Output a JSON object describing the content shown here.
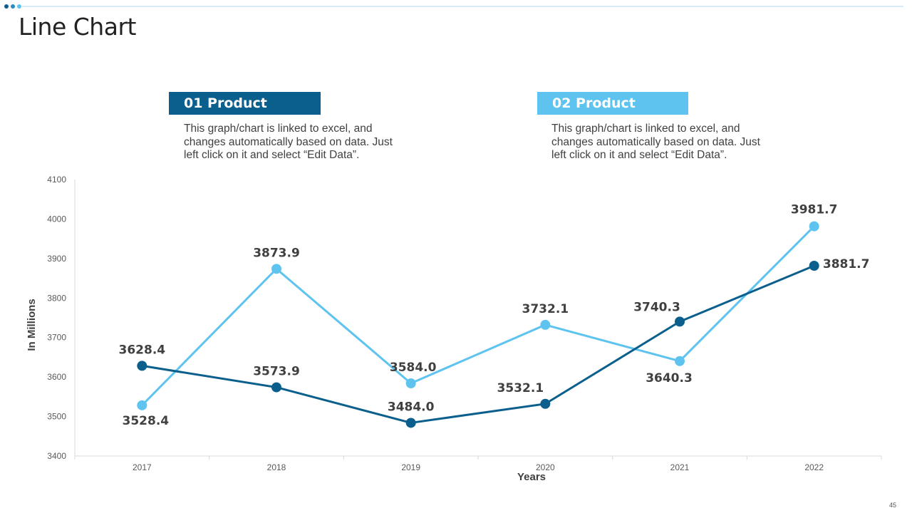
{
  "slide": {
    "title": "Line Chart",
    "page_number": "45",
    "colors": {
      "dark": "#0b5f8c",
      "light": "#5ec4ef",
      "dot_mid": "#2b8cc4"
    }
  },
  "legend": [
    {
      "label": "01 Product",
      "description": "This graph/chart is linked to excel, and changes automatically based on data. Just left click on it and select “Edit Data”.",
      "color": "#0b5f8c"
    },
    {
      "label": "02 Product",
      "description": "This graph/chart is linked to excel, and changes automatically based on data. Just left click on it and select “Edit Data”.",
      "color": "#5ec4ef"
    }
  ],
  "chart_data": {
    "type": "line",
    "title": "",
    "xlabel": "Years",
    "ylabel": "In Millions",
    "categories": [
      "2017",
      "2018",
      "2019",
      "2020",
      "2021",
      "2022"
    ],
    "ylim": [
      3400,
      4100
    ],
    "yticks": [
      3400,
      3500,
      3600,
      3700,
      3800,
      3900,
      4000,
      4100
    ],
    "grid": false,
    "series": [
      {
        "name": "01 Product",
        "color": "#0b5f8c",
        "values": [
          3628.4,
          3573.9,
          3484.0,
          3532.1,
          3740.3,
          3881.7
        ],
        "labels": [
          "3628.4",
          "3573.9",
          "3484.0",
          "3532.1",
          "3740.3",
          "3881.7"
        ]
      },
      {
        "name": "02 Product",
        "color": "#5ec4ef",
        "values": [
          3528.4,
          3873.9,
          3584.0,
          3732.1,
          3640.3,
          3981.7
        ],
        "labels": [
          "3528.4",
          "3873.9",
          "3584.0",
          "3732.1",
          "3640.3",
          "3981.7"
        ]
      }
    ]
  }
}
